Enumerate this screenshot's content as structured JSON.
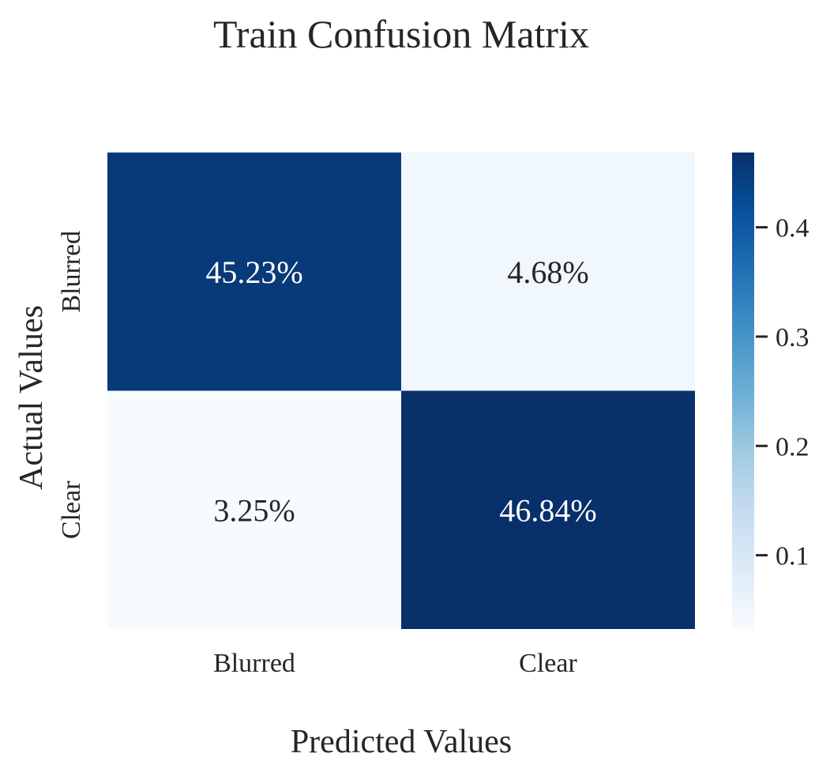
{
  "chart_data": {
    "type": "heatmap",
    "title": "Train Confusion Matrix",
    "xlabel": "Predicted Values",
    "ylabel": "Actual Values",
    "x_categories": [
      "Blurred",
      "Clear"
    ],
    "y_categories": [
      "Blurred",
      "Clear"
    ],
    "values": [
      [
        0.4523,
        0.0468
      ],
      [
        0.0325,
        0.4684
      ]
    ],
    "cell_labels": [
      [
        "45.23%",
        "4.68%"
      ],
      [
        "3.25%",
        "46.84%"
      ]
    ],
    "colormap": "Blues",
    "colorbar": {
      "range": [
        0.0325,
        0.4684
      ],
      "ticks": [
        0.1,
        0.2,
        0.3,
        0.4
      ],
      "tick_labels": [
        "0.1",
        "0.2",
        "0.3",
        "0.4"
      ]
    },
    "grid": false
  }
}
